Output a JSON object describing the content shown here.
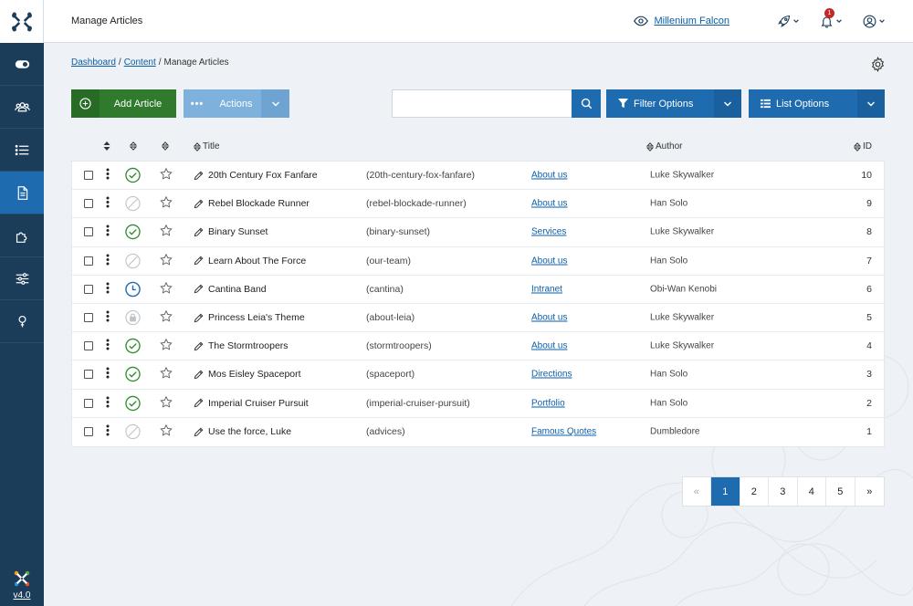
{
  "header": {
    "title": "Manage Articles",
    "site_name": "Millenium Falcon",
    "notification_count": "1"
  },
  "sidebar": {
    "items": [
      {
        "icon": "toggle-icon"
      },
      {
        "icon": "users-icon"
      },
      {
        "icon": "list-icon"
      },
      {
        "icon": "file-icon",
        "active": true
      },
      {
        "icon": "puzzle-icon"
      },
      {
        "icon": "sliders-icon"
      },
      {
        "icon": "help-icon"
      }
    ],
    "version": "v4.0"
  },
  "breadcrumb": {
    "items": [
      "Dashboard",
      "Content"
    ],
    "current": "Manage Articles"
  },
  "toolbar": {
    "add_label": "Add Article",
    "actions_label": "Actions",
    "search_placeholder": "",
    "filter_label": "Filter Options",
    "list_label": "List Options"
  },
  "table": {
    "headers": {
      "title": "Title",
      "author": "Author",
      "id": "ID"
    },
    "rows": [
      {
        "status": "published",
        "title": "20th Century Fox Fanfare",
        "alias": "(20th-century-fox-fanfare)",
        "category": "About us",
        "author": "Luke Skywalker",
        "id": "10"
      },
      {
        "status": "unpublished",
        "title": "Rebel Blockade Runner",
        "alias": "(rebel-blockade-runner)",
        "category": "About us",
        "author": "Han Solo",
        "id": "9"
      },
      {
        "status": "published",
        "title": "Binary Sunset",
        "alias": "(binary-sunset)",
        "category": "Services",
        "author": "Luke Skywalker",
        "id": "8"
      },
      {
        "status": "unpublished",
        "title": "Learn About The Force",
        "alias": "(our-team)",
        "category": "About us",
        "author": "Han Solo",
        "id": "7"
      },
      {
        "status": "pending",
        "title": "Cantina Band",
        "alias": "(cantina)",
        "category": "Intranet",
        "author": "Obi-Wan Kenobi",
        "id": "6"
      },
      {
        "status": "locked",
        "title": "Princess Leia's Theme",
        "alias": "(about-leia)",
        "category": "About us",
        "author": "Luke Skywalker",
        "id": "5"
      },
      {
        "status": "published",
        "title": "The Stormtroopers",
        "alias": "(stormtroopers)",
        "category": "About us",
        "author": "Luke Skywalker",
        "id": "4"
      },
      {
        "status": "published",
        "title": "Mos Eisley Spaceport",
        "alias": "(spaceport)",
        "category": "Directions",
        "author": "Han Solo",
        "id": "3"
      },
      {
        "status": "published",
        "title": "Imperial Cruiser Pursuit",
        "alias": "(imperial-cruiser-pursuit)",
        "category": "Portfolio",
        "author": "Han Solo",
        "id": "2"
      },
      {
        "status": "unpublished",
        "title": "Use the force, Luke",
        "alias": "(advices)",
        "category": "Famous Quotes",
        "author": "Dumbledore",
        "id": "1"
      }
    ]
  },
  "pagination": {
    "prev": "«",
    "pages": [
      "1",
      "2",
      "3",
      "4",
      "5"
    ],
    "current": "1",
    "next": "»"
  },
  "colors": {
    "sidebar": "#1c3d5a",
    "primary": "#1f6bb0",
    "success": "#2f7a2c",
    "published": "#2e8b2e",
    "pending": "#1f6bb0"
  }
}
